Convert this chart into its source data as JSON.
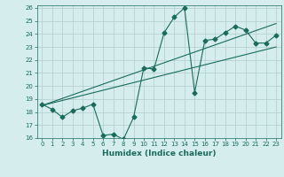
{
  "title": "",
  "xlabel": "Humidex (Indice chaleur)",
  "ylabel": "",
  "xlim": [
    -0.5,
    23.5
  ],
  "ylim": [
    16,
    26.2
  ],
  "yticks": [
    16,
    17,
    18,
    19,
    20,
    21,
    22,
    23,
    24,
    25,
    26
  ],
  "xticks": [
    0,
    1,
    2,
    3,
    4,
    5,
    6,
    7,
    8,
    9,
    10,
    11,
    12,
    13,
    14,
    15,
    16,
    17,
    18,
    19,
    20,
    21,
    22,
    23
  ],
  "bg_color": "#d5eeed",
  "grid_color": "#b0cccb",
  "line_color": "#1a6b5a",
  "line1_x": [
    0,
    1,
    2,
    3,
    4,
    5,
    6,
    7,
    8,
    9,
    10,
    11,
    12,
    13,
    14,
    15,
    16,
    17,
    18,
    19,
    20,
    21,
    22,
    23
  ],
  "line1_y": [
    18.6,
    18.2,
    17.6,
    18.1,
    18.3,
    18.6,
    16.2,
    16.3,
    15.9,
    17.6,
    21.4,
    21.3,
    24.1,
    25.3,
    26.0,
    19.5,
    23.5,
    23.6,
    24.1,
    24.6,
    24.3,
    23.3,
    23.3,
    23.9
  ],
  "line2_x": [
    0,
    23
  ],
  "line2_y": [
    18.5,
    24.8
  ],
  "line3_x": [
    0,
    23
  ],
  "line3_y": [
    18.5,
    23.0
  ],
  "marker": "D",
  "marker_size": 2.5
}
